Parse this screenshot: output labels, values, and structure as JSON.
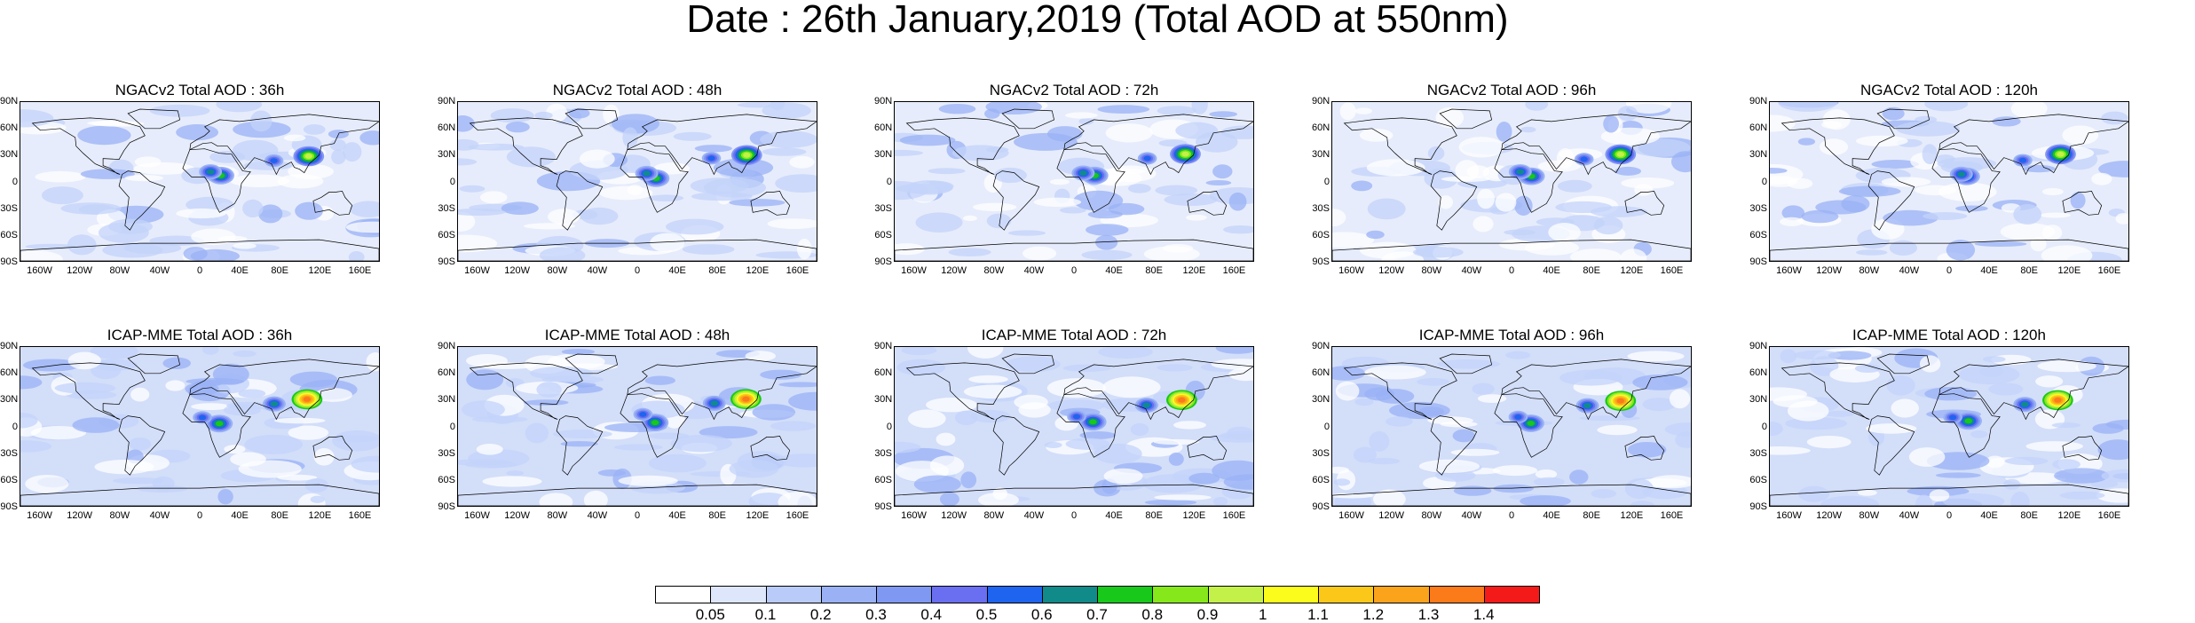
{
  "title": "Date : 26th January,2019 (Total AOD at 550nm)",
  "lat_labels": [
    "90N",
    "60N",
    "30N",
    "0",
    "30S",
    "60S",
    "90S"
  ],
  "lon_labels": [
    "160W",
    "120W",
    "80W",
    "40W",
    "0",
    "40E",
    "80E",
    "120E",
    "160E"
  ],
  "panels": [
    {
      "title": "NGACv2 Total AOD : 36h",
      "model": "NGACv2",
      "forecast_hour": 36
    },
    {
      "title": "NGACv2 Total AOD : 48h",
      "model": "NGACv2",
      "forecast_hour": 48
    },
    {
      "title": "NGACv2 Total AOD : 72h",
      "model": "NGACv2",
      "forecast_hour": 72
    },
    {
      "title": "NGACv2 Total AOD : 96h",
      "model": "NGACv2",
      "forecast_hour": 96
    },
    {
      "title": "NGACv2 Total AOD : 120h",
      "model": "NGACv2",
      "forecast_hour": 120
    },
    {
      "title": "ICAP-MME Total AOD : 36h",
      "model": "ICAP-MME",
      "forecast_hour": 36
    },
    {
      "title": "ICAP-MME Total AOD : 48h",
      "model": "ICAP-MME",
      "forecast_hour": 48
    },
    {
      "title": "ICAP-MME Total AOD : 72h",
      "model": "ICAP-MME",
      "forecast_hour": 72
    },
    {
      "title": "ICAP-MME Total AOD : 96h",
      "model": "ICAP-MME",
      "forecast_hour": 96
    },
    {
      "title": "ICAP-MME Total AOD : 120h",
      "model": "ICAP-MME",
      "forecast_hour": 120
    }
  ],
  "colorbar": {
    "labels": [
      "0.05",
      "0.1",
      "0.2",
      "0.3",
      "0.4",
      "0.5",
      "0.6",
      "0.7",
      "0.8",
      "0.9",
      "1",
      "1.1",
      "1.2",
      "1.3",
      "1.4"
    ],
    "colors": [
      "#ffffff",
      "#dde6fb",
      "#b9cbf8",
      "#9ab2f5",
      "#7f98f2",
      "#6a6ef0",
      "#1f64ee",
      "#118a8a",
      "#18c81a",
      "#86e81a",
      "#c4f04a",
      "#fbfb1c",
      "#fbc81a",
      "#fba31a",
      "#fb7a1a",
      "#f51a1a"
    ]
  },
  "hotspots_by_row": [
    [
      {
        "lon": 20,
        "lat": 5,
        "level": 8
      },
      {
        "lon": 112,
        "lat": 30,
        "level": 10
      },
      {
        "lon": 75,
        "lat": 25,
        "level": 6
      },
      {
        "lon": 10,
        "lat": 10,
        "level": 7
      }
    ],
    [
      {
        "lon": 110,
        "lat": 30,
        "level": 14
      },
      {
        "lon": 20,
        "lat": 5,
        "level": 8
      },
      {
        "lon": 75,
        "lat": 25,
        "level": 7
      },
      {
        "lon": 5,
        "lat": 12,
        "level": 6
      }
    ]
  ]
}
